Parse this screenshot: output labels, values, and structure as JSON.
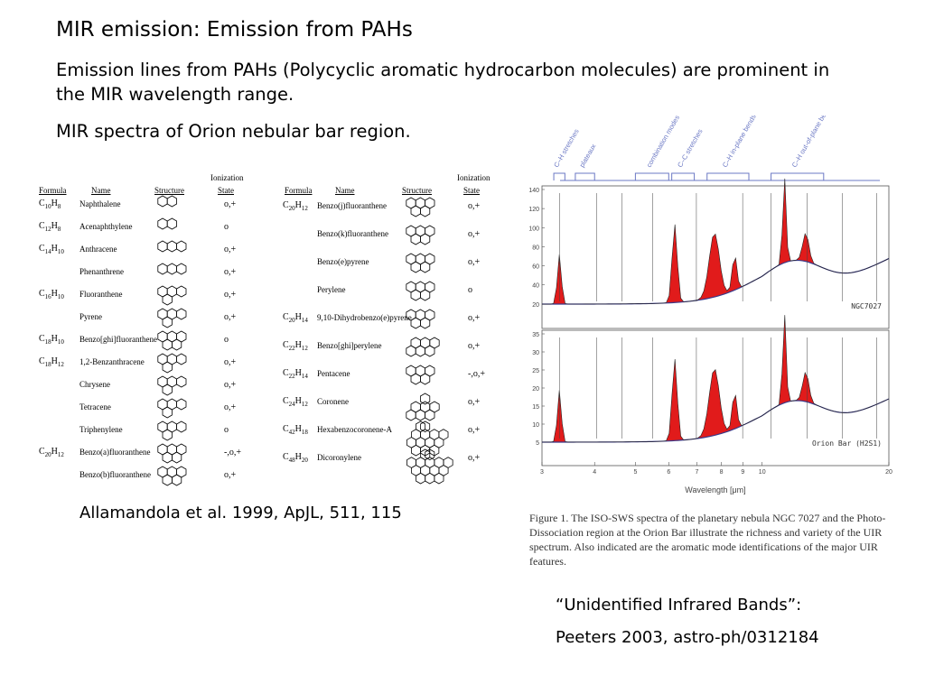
{
  "slide": {
    "title": "MIR emission: Emission from PAHs",
    "para1": "Emission lines from PAHs (Polycyclic aromatic hydrocarbon molecules) are prominent in the MIR wavelength range.",
    "para2": "MIR spectra of Orion nebular bar region.",
    "citation_left": "Allamandola et al. 1999, ApJL, 511, 115",
    "uib": "“Unidentified Infrared Bands”:",
    "citation_right": "Peeters 2003, astro-ph/0312184"
  },
  "table": {
    "headers": {
      "formula": "Formula",
      "name": "Name",
      "structure": "Structure",
      "ionization_1": "Ionization",
      "ionization_2": "State"
    },
    "left": [
      {
        "formula": "C10H8",
        "name": "Naphthalene",
        "state": "o,+",
        "rings": 2
      },
      {
        "formula": "C12H8",
        "name": "Acenaphthylene",
        "state": "o",
        "rings": 2
      },
      {
        "formula": "C14H10",
        "name": "Anthracene",
        "state": "o,+",
        "rings": 3
      },
      {
        "formula": "",
        "name": "Phenanthrene",
        "state": "o,+",
        "rings": 3
      },
      {
        "formula": "C16H10",
        "name": "Fluoranthene",
        "state": "o,+",
        "rings": 4
      },
      {
        "formula": "",
        "name": "Pyrene",
        "state": "o,+",
        "rings": 4
      },
      {
        "formula": "C18H10",
        "name": "Benzo[ghi]fluoranthene",
        "state": "o",
        "rings": 5
      },
      {
        "formula": "C18H12",
        "name": "1,2-Benzanthracene",
        "state": "o,+",
        "rings": 4
      },
      {
        "formula": "",
        "name": "Chrysene",
        "state": "o,+",
        "rings": 4
      },
      {
        "formula": "",
        "name": "Tetracene",
        "state": "o,+",
        "rings": 4
      },
      {
        "formula": "",
        "name": "Triphenylene",
        "state": "o",
        "rings": 4
      },
      {
        "formula": "C20H12",
        "name": "Benzo(a)fluoranthene",
        "state": "-,o,+",
        "rings": 5
      },
      {
        "formula": "",
        "name": "Benzo(b)fluoranthene",
        "state": "o,+",
        "rings": 5
      }
    ],
    "right": [
      {
        "formula": "C20H12",
        "name": "Benzo(j)fluoranthene",
        "state": "o,+",
        "rings": 5
      },
      {
        "formula": "",
        "name": "Benzo(k)fluoranthene",
        "state": "o,+",
        "rings": 5
      },
      {
        "formula": "",
        "name": "Benzo(e)pyrene",
        "state": "o,+",
        "rings": 5
      },
      {
        "formula": "",
        "name": "Perylene",
        "state": "o",
        "rings": 5
      },
      {
        "formula": "C20H14",
        "name": "9,10-Dihydrobenzo(e)pyrene",
        "state": "o,+",
        "rings": 5
      },
      {
        "formula": "C22H12",
        "name": "Benzo[ghi]perylene",
        "state": "o,+",
        "rings": 6
      },
      {
        "formula": "C22H14",
        "name": "Pentacene",
        "state": "-,o,+",
        "rings": 5
      },
      {
        "formula": "C24H12",
        "name": "Coronene",
        "state": "o,+",
        "rings": 7
      },
      {
        "formula": "C42H18",
        "name": "Hexabenzocoronene-A",
        "state": "o,+",
        "rings": 13
      },
      {
        "formula": "C48H20",
        "name": "Dicoronylene",
        "state": "o,+",
        "rings": 14
      }
    ]
  },
  "figure": {
    "band_labels": [
      "C–H stretches",
      "plateaux",
      "combination modes",
      "C–C stretches",
      "C–H in-plane bends",
      "C–H out-of-plane bends"
    ],
    "top_panel_label": "NGC7027",
    "bottom_panel_label": "Orion Bar (H2S1)",
    "top_yticks": [
      "140",
      "120",
      "100",
      "80",
      "60",
      "40",
      "20"
    ],
    "bottom_yticks": [
      "35",
      "30",
      "25",
      "20",
      "15",
      "10",
      "5"
    ],
    "xticks": [
      "3",
      "4",
      "5",
      "6",
      "7",
      "8",
      "9",
      "10",
      "20"
    ],
    "xlabel": "Wavelength [μm]",
    "fill_color": "#e11b1b",
    "line_color": "#3a3a8a",
    "caption_fig": "Figure 1.",
    "caption_text": "The ISO-SWS spectra of the planetary nebula NGC 7027 and the Photo-Dissociation region at the Orion Bar illustrate the richness and variety of the UIR spectrum. Also indicated are the aromatic mode identifications of the major UIR features."
  }
}
